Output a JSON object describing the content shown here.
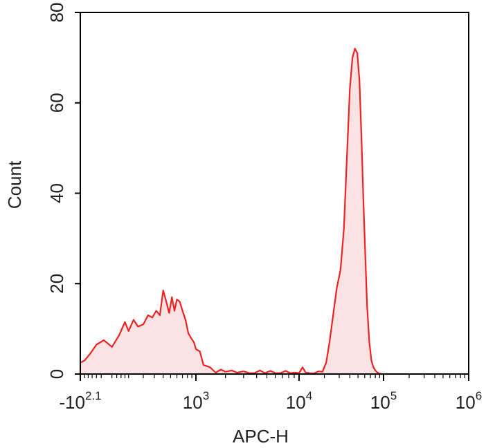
{
  "chart_data": {
    "type": "area",
    "xlabel": "APC-H",
    "ylabel": "Count",
    "xscale": "logicle",
    "ylim": [
      0,
      80
    ],
    "legend": "none",
    "grid": false,
    "colors": {
      "line": "#ee2222",
      "fill": "#fbe3e3",
      "axis": "#000000"
    },
    "y_ticks": [
      {
        "value": 0,
        "label": "0"
      },
      {
        "value": 20,
        "label": "20"
      },
      {
        "value": 40,
        "label": "40"
      },
      {
        "value": 60,
        "label": "60"
      },
      {
        "value": 80,
        "label": "80"
      }
    ],
    "x_ticks": [
      {
        "value": -125.9,
        "base": "-10",
        "exp": "2.1"
      },
      {
        "value": 1000,
        "base": "10",
        "exp": "3"
      },
      {
        "value": 10000,
        "base": "10",
        "exp": "4"
      },
      {
        "value": 100000,
        "base": "10",
        "exp": "5"
      },
      {
        "value": 1000000,
        "base": "10",
        "exp": "6"
      }
    ],
    "series": [
      {
        "x": [
          -125.9,
          -100,
          -70,
          -40,
          -10,
          20,
          50,
          80,
          100,
          130,
          160,
          200,
          240,
          280,
          320,
          360,
          400,
          440,
          480,
          520,
          560,
          600,
          650,
          700,
          760,
          820,
          880,
          950,
          1000,
          1100,
          1200,
          1400,
          1600,
          1800,
          2000,
          2300,
          2600,
          3000,
          3400,
          3800,
          4300,
          4800,
          5400,
          6000,
          6700,
          7500,
          8300,
          9200,
          10000,
          11000,
          12000,
          13500,
          15000,
          17000,
          19000,
          21000,
          23000,
          25000,
          28000,
          31000,
          34000,
          37000,
          40000,
          43000,
          46000,
          49000,
          52000,
          55000,
          58000,
          61000,
          64000,
          68000,
          72000,
          76000,
          80000,
          85000,
          90000,
          95000,
          100000,
          110000
        ],
        "y": [
          2.5,
          3.0,
          4.5,
          6.5,
          7.5,
          6.0,
          8.5,
          11.5,
          9.5,
          12.0,
          10.5,
          11.0,
          13.0,
          12.5,
          14.0,
          13.0,
          18.5,
          16.0,
          13.5,
          17.0,
          14.0,
          16.5,
          16.0,
          14.0,
          12.0,
          9.0,
          8.0,
          7.0,
          5.5,
          5.0,
          2.0,
          1.5,
          0.3,
          1.0,
          0.5,
          0.8,
          0.3,
          0.6,
          0.2,
          0.2,
          0.8,
          0.2,
          0.7,
          0.2,
          0.2,
          0.7,
          0.2,
          0.3,
          0.2,
          1.5,
          0.3,
          0.2,
          0.1,
          0.6,
          0.5,
          2.5,
          7.0,
          12.0,
          19.0,
          23.0,
          32.0,
          48.0,
          63.0,
          70.0,
          72.0,
          71.0,
          65.0,
          52.0,
          38.0,
          26.0,
          15.0,
          7.0,
          3.0,
          1.5,
          0.8,
          0.3,
          0.1,
          0.0,
          0.0,
          0.0
        ]
      }
    ]
  }
}
